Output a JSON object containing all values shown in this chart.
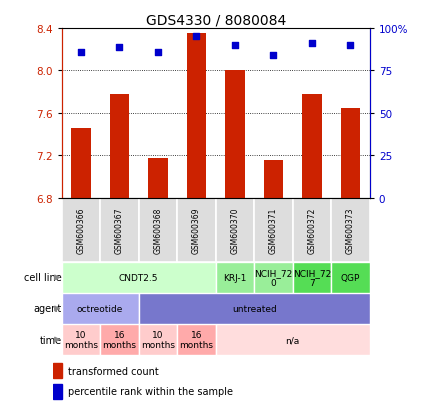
{
  "title": "GDS4330 / 8080084",
  "samples": [
    "GSM600366",
    "GSM600367",
    "GSM600368",
    "GSM600369",
    "GSM600370",
    "GSM600371",
    "GSM600372",
    "GSM600373"
  ],
  "transformed_count": [
    7.46,
    7.78,
    7.17,
    8.35,
    8.0,
    7.16,
    7.78,
    7.65
  ],
  "percentile_rank": [
    86,
    89,
    86,
    95,
    90,
    84,
    91,
    90
  ],
  "ylim_left": [
    6.8,
    8.4
  ],
  "ylim_right": [
    0,
    100
  ],
  "yticks_left": [
    6.8,
    7.2,
    7.6,
    8.0,
    8.4
  ],
  "yticks_right": [
    0,
    25,
    50,
    75,
    100
  ],
  "ytick_labels_right": [
    "0",
    "25",
    "50",
    "75",
    "100%"
  ],
  "bar_color": "#cc2200",
  "scatter_color": "#0000cc",
  "cell_line_data": {
    "groups": [
      {
        "label": "CNDT2.5",
        "start": 0,
        "end": 4,
        "color": "#ccffcc"
      },
      {
        "label": "KRJ-1",
        "start": 4,
        "end": 5,
        "color": "#99ee99"
      },
      {
        "label": "NCIH_72\n0",
        "start": 5,
        "end": 6,
        "color": "#99ee99"
      },
      {
        "label": "NCIH_72\n7",
        "start": 6,
        "end": 7,
        "color": "#55dd55"
      },
      {
        "label": "QGP",
        "start": 7,
        "end": 8,
        "color": "#55dd55"
      }
    ]
  },
  "agent_data": {
    "groups": [
      {
        "label": "octreotide",
        "start": 0,
        "end": 2,
        "color": "#aaaaee"
      },
      {
        "label": "untreated",
        "start": 2,
        "end": 8,
        "color": "#7777cc"
      }
    ]
  },
  "time_data": {
    "groups": [
      {
        "label": "10\nmonths",
        "start": 0,
        "end": 1,
        "color": "#ffcccc"
      },
      {
        "label": "16\nmonths",
        "start": 1,
        "end": 2,
        "color": "#ffaaaa"
      },
      {
        "label": "10\nmonths",
        "start": 2,
        "end": 3,
        "color": "#ffcccc"
      },
      {
        "label": "16\nmonths",
        "start": 3,
        "end": 4,
        "color": "#ffaaaa"
      },
      {
        "label": "n/a",
        "start": 4,
        "end": 8,
        "color": "#ffdddd"
      }
    ]
  },
  "row_labels": [
    "cell line",
    "agent",
    "time"
  ],
  "legend_items": [
    {
      "label": "transformed count",
      "color": "#cc2200"
    },
    {
      "label": "percentile rank within the sample",
      "color": "#0000cc"
    }
  ]
}
